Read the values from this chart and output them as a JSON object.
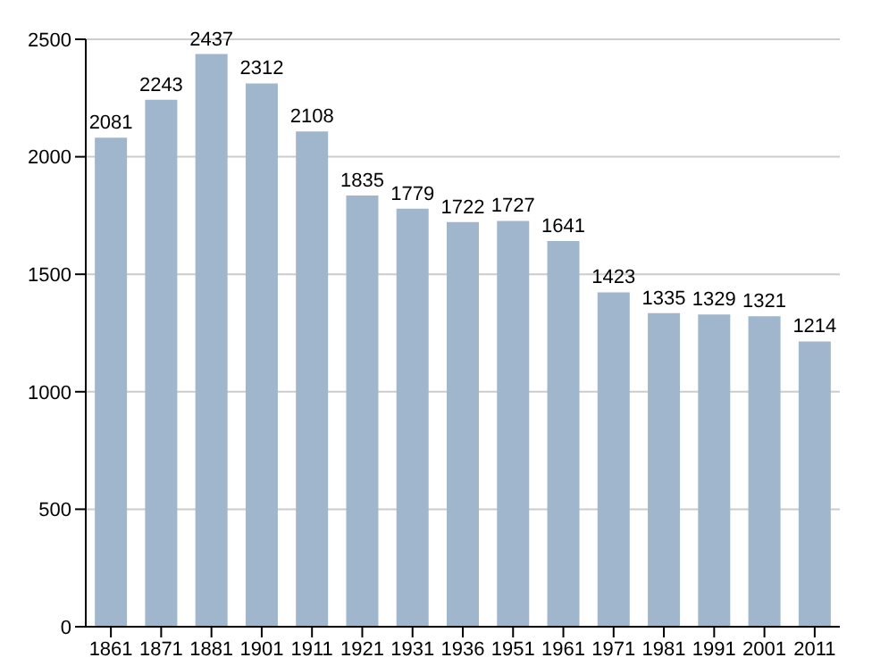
{
  "chart_data": {
    "type": "bar",
    "categories": [
      "1861",
      "1871",
      "1881",
      "1901",
      "1911",
      "1921",
      "1931",
      "1936",
      "1951",
      "1961",
      "1971",
      "1981",
      "1991",
      "2001",
      "2011"
    ],
    "values": [
      2081,
      2243,
      2437,
      2312,
      2108,
      1835,
      1779,
      1722,
      1727,
      1641,
      1423,
      1335,
      1329,
      1321,
      1214
    ],
    "color": "#a0b6cd",
    "ylim": [
      0,
      2500
    ],
    "yticks": [
      0,
      500,
      1000,
      1500,
      2000,
      2500
    ],
    "grid": "y",
    "data_labels": true
  }
}
